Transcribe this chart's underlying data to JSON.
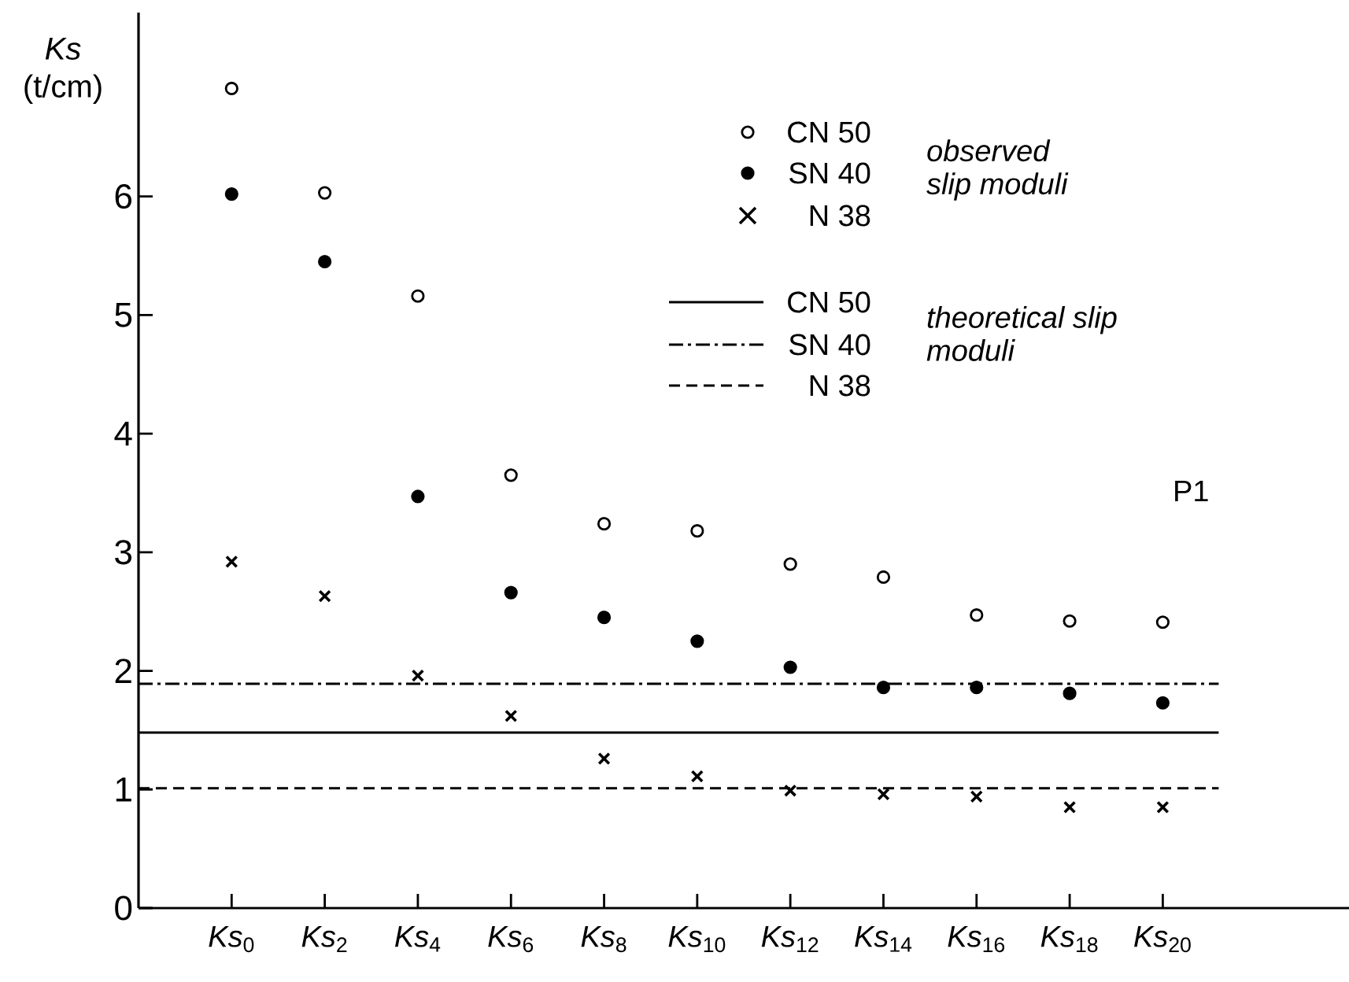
{
  "chart_data": {
    "type": "scatter",
    "categories": [
      "*Ks*$_{0}$",
      "*Ks*$_{2}$",
      "*Ks*$_{4}$",
      "*Ks*$_{6}$",
      "*Ks*$_{8}$",
      "*Ks*$_{10}$",
      "*Ks*$_{12}$",
      "*Ks*$_{14}$",
      "*Ks*$_{16}$",
      "*Ks*$_{18}$",
      "*Ks*$_{20}$"
    ],
    "series": [
      {
        "name": "CN 50",
        "color": "#ffffff",
        "marker": "circle",
        "values": [
          6.91,
          6.03,
          5.16,
          3.65,
          3.24,
          3.18,
          2.9,
          2.79,
          2.47,
          2.42,
          2.41
        ]
      },
      {
        "name": "SN 40",
        "color": "#000000",
        "marker": "circle",
        "values": [
          6.02,
          5.45,
          3.47,
          2.66,
          2.45,
          2.25,
          2.03,
          1.86,
          1.86,
          1.81,
          1.73
        ]
      },
      {
        "name": "N 38",
        "color": "#000000",
        "marker": "cross",
        "values": [
          2.92,
          2.63,
          1.96,
          1.62,
          1.26,
          1.11,
          0.99,
          0.96,
          0.94,
          0.85,
          0.85
        ]
      }
    ],
    "ref_lines": [
      {
        "axis": "y",
        "value": 1.48,
        "label": "CN 50",
        "color": "#000000",
        "line_style": "solid"
      },
      {
        "axis": "y",
        "value": 1.89,
        "label": "SN 40",
        "color": "#000000",
        "line_style": "dashdot"
      },
      {
        "axis": "y",
        "value": 1.01,
        "label": "N 38",
        "color": "#000000",
        "line_style": "dashed"
      }
    ],
    "ylabel": "*Ks* (t/cm)",
    "ylim": [
      0,
      7.55
    ],
    "yticks": [
      0,
      1,
      2,
      3,
      4,
      5,
      6
    ],
    "legend": "top right",
    "annotations": [
      "*observed slip moduli*",
      "*theoretical slip moduli*",
      "P1"
    ]
  }
}
